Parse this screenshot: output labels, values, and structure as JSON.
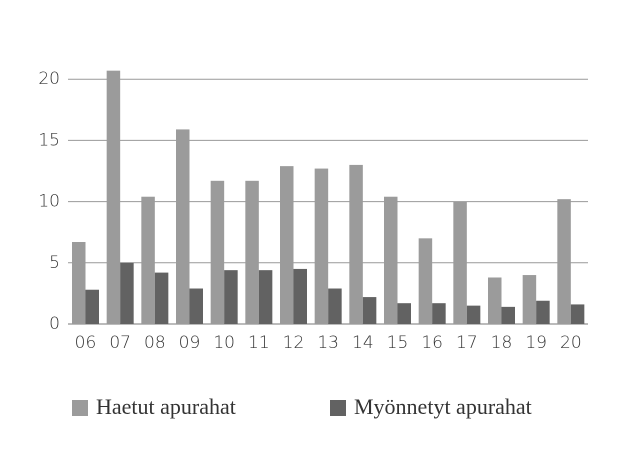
{
  "chart_data": {
    "type": "bar",
    "categories": [
      "06",
      "07",
      "08",
      "09",
      "10",
      "11",
      "12",
      "13",
      "14",
      "15",
      "16",
      "17",
      "18",
      "19",
      "20"
    ],
    "series": [
      {
        "name": "Haetut apurahat",
        "color": "#9b9b9b",
        "values": [
          6.7,
          20.7,
          10.4,
          15.9,
          11.7,
          11.7,
          12.9,
          12.7,
          13.0,
          10.4,
          7.0,
          10.0,
          3.8,
          4.0,
          10.2
        ]
      },
      {
        "name": "Myönnetyt apurahat",
        "color": "#626262",
        "values": [
          2.8,
          5.0,
          4.2,
          2.9,
          4.4,
          4.4,
          4.5,
          2.9,
          2.2,
          1.7,
          1.7,
          1.5,
          1.4,
          1.9,
          1.6
        ]
      }
    ],
    "ylim": [
      0,
      21
    ],
    "yticks": [
      0,
      5,
      10,
      15,
      20
    ],
    "grid": true,
    "legend": "bottom"
  }
}
